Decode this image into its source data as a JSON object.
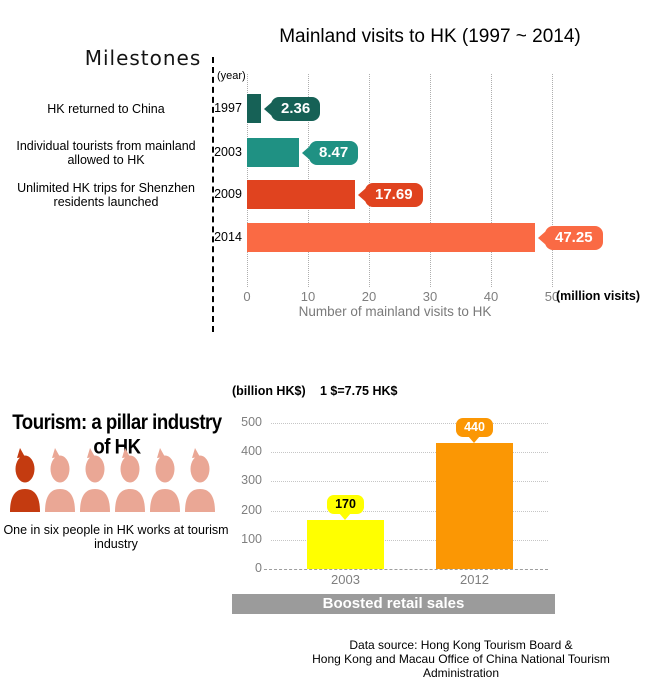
{
  "top_chart": {
    "title": "Mainland visits to HK (1997 ~ 2014)",
    "milestones_heading": "Milestones",
    "year_axis_label": "(year)",
    "x_ticks": [
      "0",
      "10",
      "20",
      "30",
      "40",
      "50"
    ],
    "x_unit_label": "(million visits)",
    "x_axis_title": "Number of mainland visits to HK",
    "rows": [
      {
        "year": "1997",
        "milestone_lines": [
          "HK returned to China"
        ],
        "value": "2.36"
      },
      {
        "year": "2003",
        "milestone_lines": [
          "Individual tourists from mainland",
          "allowed to HK"
        ],
        "value": "8.47"
      },
      {
        "year": "2009",
        "milestone_lines": [
          "Unlimited HK trips for Shenzhen",
          "residents launched"
        ],
        "value": "17.69"
      },
      {
        "year": "2014",
        "milestone_lines": [],
        "value": "47.25"
      }
    ]
  },
  "tourism": {
    "heading": "Tourism: a pillar industry of HK",
    "caption_lines": [
      "One in six people in HK works at tourism",
      "industry"
    ],
    "people_count": 6,
    "highlight_color": "#c43b10",
    "person_color": "#eaa795"
  },
  "retail_chart": {
    "unit_label": "(billion HK$)",
    "exchange_note": "1 $=7.75 HK$",
    "y_ticks": [
      "500",
      "400",
      "300",
      "200",
      "100",
      "0"
    ],
    "x_labels": [
      "2003",
      "2012"
    ],
    "values": [
      "170",
      "440"
    ],
    "banner": "Boosted retail sales"
  },
  "footer": {
    "source_lines": [
      "Data source: Hong Kong Tourism Board &",
      "Hong Kong and Macau Office of China National Tourism",
      "Administration"
    ]
  },
  "chart_data": [
    {
      "type": "bar",
      "orientation": "horizontal",
      "title": "Mainland visits to HK (1997 ~ 2014)",
      "categories": [
        "1997",
        "2003",
        "2009",
        "2014"
      ],
      "values": [
        2.36,
        8.47,
        17.69,
        47.25
      ],
      "colors": [
        "#166156",
        "#1f9183",
        "#e0431f",
        "#fa6a44"
      ],
      "xlabel": "Number of mainland visits to HK",
      "unit": "million visits",
      "xlim": [
        0,
        50
      ],
      "grid": true,
      "annotations": [
        "HK returned to China",
        "Individual tourists from mainland allowed to HK",
        "Unlimited HK trips for Shenzhen residents launched"
      ]
    },
    {
      "type": "bar",
      "orientation": "vertical",
      "categories": [
        "2003",
        "2012"
      ],
      "values": [
        170,
        440
      ],
      "colors": [
        "#ffff00",
        "#fb9704"
      ],
      "label_colors": [
        "#000000",
        "#ffffff"
      ],
      "ylabel": "(billion HK$)",
      "note": "1 $=7.75 HK$",
      "ylim": [
        0,
        500
      ],
      "grid": true,
      "caption": "Boosted retail sales"
    }
  ]
}
